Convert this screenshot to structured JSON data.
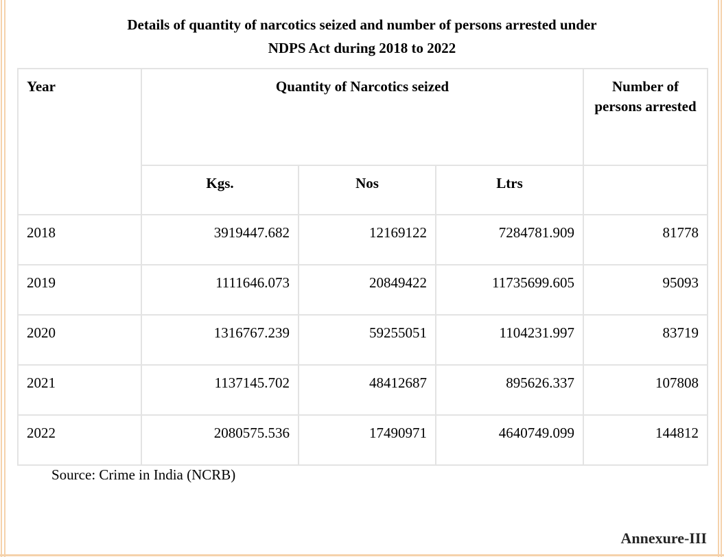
{
  "page": {
    "title_line1": "Details of quantity of narcotics seized and number of persons arrested under",
    "title_line2": "NDPS Act during 2018 to 2022"
  },
  "table": {
    "header": {
      "year": "Year",
      "quantity": "Quantity of Narcotics seized",
      "arrested": "Number of persons arrested",
      "units": [
        "Kgs.",
        "Nos",
        "Ltrs"
      ]
    },
    "rows": [
      {
        "year": "2018",
        "kgs": "3919447.682",
        "nos": "12169122",
        "ltrs": "7284781.909",
        "arrested": "81778"
      },
      {
        "year": "2019",
        "kgs": "1111646.073",
        "nos": "20849422",
        "ltrs": "11735699.605",
        "arrested": "95093"
      },
      {
        "year": "2020",
        "kgs": "1316767.239",
        "nos": "59255051",
        "ltrs": "1104231.997",
        "arrested": "83719"
      },
      {
        "year": "2021",
        "kgs": "1137145.702",
        "nos": "48412687",
        "ltrs": "895626.337",
        "arrested": "107808"
      },
      {
        "year": "2022",
        "kgs": "2080575.536",
        "nos": "17490971",
        "ltrs": "4640749.099",
        "arrested": "144812"
      }
    ]
  },
  "footer": {
    "source": "Source: Crime in India (NCRB)",
    "annexure": "Annexure-III"
  },
  "colors": {
    "page_frame": "#f5d2ab",
    "table_border": "#e3e3e3",
    "text": "#000000"
  }
}
